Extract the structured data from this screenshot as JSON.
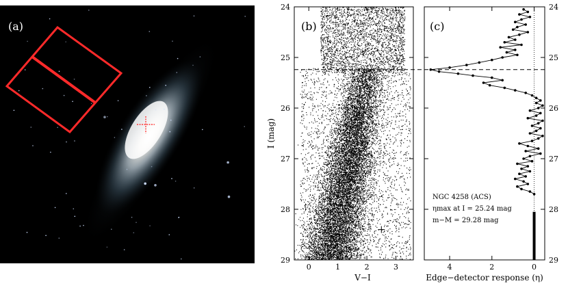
{
  "panels": {
    "a": {
      "label": "(a)"
    },
    "b": {
      "label": "(b)"
    },
    "c": {
      "label": "(c)"
    }
  },
  "chart_data": [
    {
      "type": "scatter",
      "panel": "b",
      "xlabel": "V−I",
      "ylabel": "I (mag)",
      "xlim": [
        -0.5,
        3.6
      ],
      "ylim": [
        29,
        24
      ],
      "y_inverted": true,
      "x_ticks": [
        "0",
        "1",
        "2",
        "3"
      ],
      "y_ticks": [
        "24",
        "25",
        "26",
        "27",
        "28",
        "29"
      ],
      "trgb_I": 25.24,
      "trgb_line_style": "dashed",
      "error_cross": {
        "x": 2.5,
        "y": 28.4
      },
      "density_regions": [
        {
          "description": "red giant branch core",
          "x_center": 1.6,
          "I_center": 26.7
        },
        {
          "description": "bright sparse region",
          "x_range": [
            0.5,
            3.3
          ],
          "I_range": [
            24,
            25.24
          ]
        }
      ]
    },
    {
      "type": "line",
      "panel": "c",
      "xlabel": "Edge−detector response (η)",
      "xlim": [
        5.2,
        -0.5
      ],
      "x_inverted": true,
      "ylim": [
        29,
        24
      ],
      "x_ticks": [
        "4",
        "2",
        "0"
      ],
      "y_ticks": [
        "24",
        "25",
        "26",
        "27",
        "28",
        "29"
      ],
      "annotation": [
        "NGC 4258 (ACS)",
        "ηmax at I = 25.24 mag",
        "m−M = 29.28 mag"
      ],
      "eta_max_I": 25.24,
      "bar_range_I": [
        28.05,
        29
      ],
      "series": [
        {
          "name": "",
          "points": [
            [
              0.5,
              24.05
            ],
            [
              0.3,
              24.1
            ],
            [
              0.7,
              24.15
            ],
            [
              0.2,
              24.2
            ],
            [
              0.6,
              24.25
            ],
            [
              0.9,
              24.3
            ],
            [
              0.4,
              24.35
            ],
            [
              0.8,
              24.4
            ],
            [
              1.0,
              24.45
            ],
            [
              0.3,
              24.5
            ],
            [
              0.7,
              24.55
            ],
            [
              1.2,
              24.6
            ],
            [
              0.9,
              24.65
            ],
            [
              1.4,
              24.7
            ],
            [
              0.6,
              24.75
            ],
            [
              1.6,
              24.8
            ],
            [
              0.9,
              24.85
            ],
            [
              1.3,
              24.9
            ],
            [
              0.8,
              24.95
            ],
            [
              1.5,
              25.0
            ],
            [
              2.0,
              25.05
            ],
            [
              2.6,
              25.1
            ],
            [
              3.2,
              25.15
            ],
            [
              4.0,
              25.2
            ],
            [
              4.9,
              25.24
            ],
            [
              4.5,
              25.28
            ],
            [
              3.6,
              25.32
            ],
            [
              2.9,
              25.36
            ],
            [
              2.0,
              25.4
            ],
            [
              1.5,
              25.45
            ],
            [
              2.4,
              25.5
            ],
            [
              2.1,
              25.55
            ],
            [
              1.4,
              25.6
            ],
            [
              0.9,
              25.65
            ],
            [
              0.4,
              25.7
            ],
            [
              0.1,
              25.75
            ],
            [
              -0.1,
              25.8
            ],
            [
              -0.3,
              25.85
            ],
            [
              -0.1,
              25.9
            ],
            [
              -0.4,
              25.95
            ],
            [
              -0.2,
              26.0
            ],
            [
              0.2,
              26.05
            ],
            [
              -0.3,
              26.1
            ],
            [
              -0.1,
              26.15
            ],
            [
              0.3,
              26.2
            ],
            [
              -0.4,
              26.25
            ],
            [
              -0.2,
              26.3
            ],
            [
              0.1,
              26.35
            ],
            [
              -0.3,
              26.4
            ],
            [
              -0.1,
              26.45
            ],
            [
              0.2,
              26.5
            ],
            [
              -0.4,
              26.55
            ],
            [
              -0.2,
              26.6
            ],
            [
              0.1,
              26.65
            ],
            [
              0.7,
              26.7
            ],
            [
              0.3,
              26.75
            ],
            [
              -0.2,
              26.8
            ],
            [
              0.4,
              26.85
            ],
            [
              -0.3,
              26.9
            ],
            [
              0.2,
              26.95
            ],
            [
              0.5,
              27.0
            ],
            [
              0.1,
              27.05
            ],
            [
              0.8,
              27.1
            ],
            [
              0.3,
              27.15
            ],
            [
              0.6,
              27.2
            ],
            [
              0.2,
              27.25
            ],
            [
              0.7,
              27.3
            ],
            [
              0.4,
              27.35
            ],
            [
              0.9,
              27.4
            ],
            [
              0.5,
              27.45
            ],
            [
              0.3,
              27.5
            ],
            [
              0.8,
              27.55
            ],
            [
              0.6,
              27.6
            ],
            [
              0.2,
              27.65
            ],
            [
              0.0,
              27.7
            ]
          ]
        }
      ]
    }
  ]
}
